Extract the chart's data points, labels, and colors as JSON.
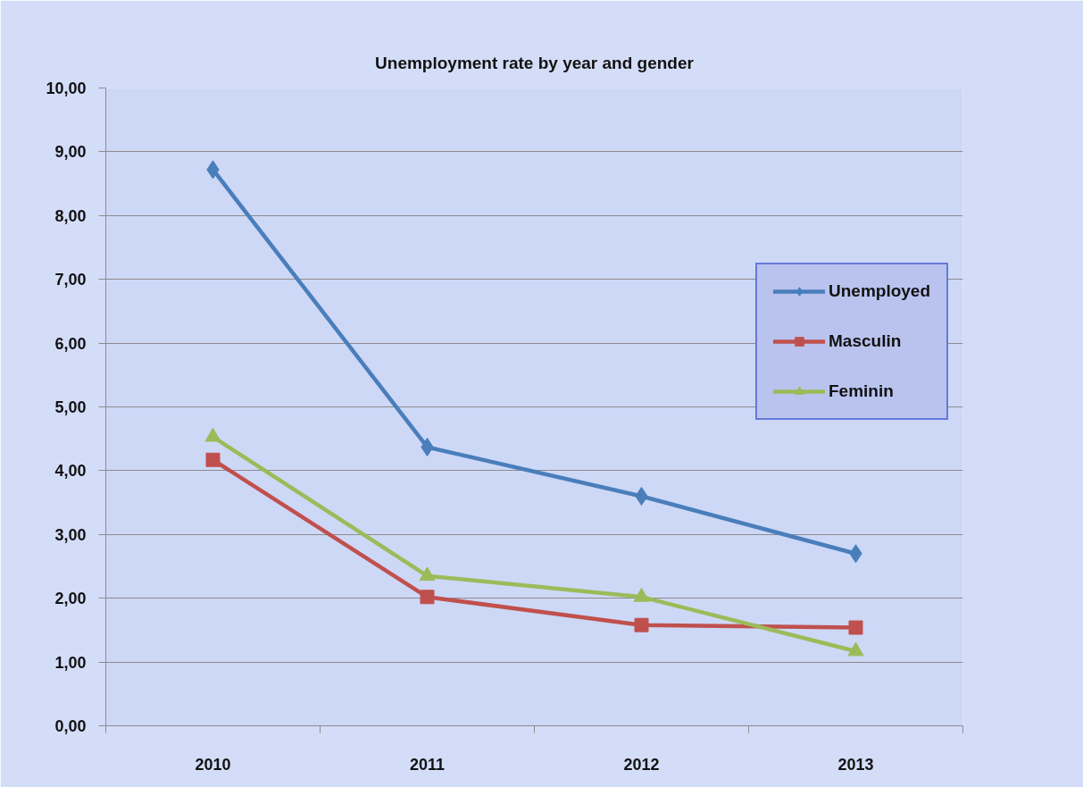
{
  "chart_data": {
    "type": "line",
    "title": "Unemployment rate by year and gender",
    "categories": [
      "2010",
      "2011",
      "2012",
      "2013"
    ],
    "series": [
      {
        "name": "Unemployed",
        "color": "#4a7ebb",
        "marker": "diamond",
        "values": [
          8.72,
          4.37,
          3.6,
          2.7
        ]
      },
      {
        "name": "Masculin",
        "color": "#c0504d",
        "marker": "square",
        "values": [
          4.17,
          2.02,
          1.58,
          1.54
        ]
      },
      {
        "name": "Feminin",
        "color": "#9bbb59",
        "marker": "triangle",
        "values": [
          4.53,
          2.35,
          2.02,
          1.17
        ]
      }
    ],
    "ylim": [
      0,
      10
    ],
    "yticks": [
      {
        "value": 0,
        "label": "0,00"
      },
      {
        "value": 1,
        "label": "1,00"
      },
      {
        "value": 2,
        "label": "2,00"
      },
      {
        "value": 3,
        "label": "3,00"
      },
      {
        "value": 4,
        "label": "4,00"
      },
      {
        "value": 5,
        "label": "5,00"
      },
      {
        "value": 6,
        "label": "6,00"
      },
      {
        "value": 7,
        "label": "7,00"
      },
      {
        "value": 8,
        "label": "8,00"
      },
      {
        "value": 9,
        "label": "9,00"
      },
      {
        "value": 10,
        "label": "10,00"
      }
    ],
    "grid": "y",
    "legend": "right",
    "line_style": "solid"
  }
}
